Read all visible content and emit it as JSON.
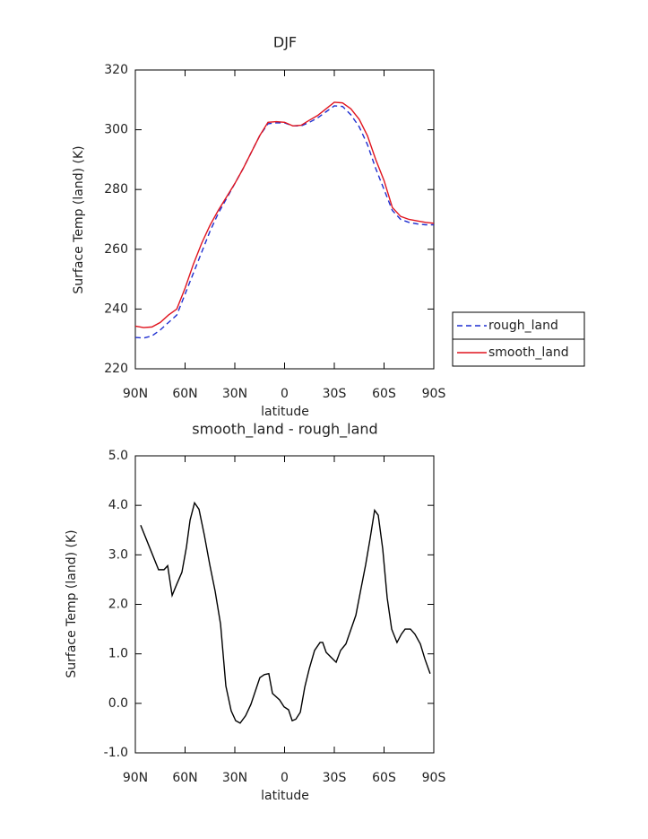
{
  "chart_data": [
    {
      "type": "line",
      "title": "DJF",
      "x_label": "latitude",
      "y_label": "Surface Temp (land) (K)",
      "x": [
        90,
        85,
        80,
        75,
        70,
        65,
        60,
        55,
        50,
        45,
        40,
        35,
        30,
        25,
        20,
        15,
        10,
        5,
        0,
        -5,
        -10,
        -15,
        -20,
        -25,
        -30,
        -35,
        -40,
        -45,
        -50,
        -55,
        -60,
        -65,
        -70,
        -75,
        -80,
        -85,
        -90
      ],
      "series": [
        {
          "name": "rough_land",
          "color": "#1f2fd0",
          "line_style": "dashed",
          "values": [
            230.5,
            230.3,
            231,
            233,
            235.5,
            238,
            245,
            252,
            259,
            266,
            272,
            277,
            282,
            287,
            292.5,
            298,
            302,
            302.3,
            302.3,
            301.3,
            301.3,
            302.5,
            304,
            306,
            308,
            307.8,
            305,
            301,
            295,
            287,
            280,
            273,
            270,
            269,
            268.5,
            268.2,
            268.2
          ]
        },
        {
          "name": "smooth_land",
          "color": "#e0141e",
          "line_style": "solid",
          "values": [
            234.3,
            233.8,
            234,
            235.5,
            238,
            240,
            247,
            255,
            262,
            268,
            273,
            277.5,
            282,
            287,
            292.5,
            298,
            302.5,
            302.7,
            302.5,
            301.3,
            301.5,
            303.2,
            304.8,
            307,
            309.2,
            309,
            307,
            303.5,
            298,
            290,
            283,
            274,
            271,
            270,
            269.5,
            269,
            268.7
          ]
        }
      ],
      "xlim": [
        90,
        -90
      ],
      "xticks": [
        {
          "value": 90,
          "label": "90N"
        },
        {
          "value": 60,
          "label": "60N"
        },
        {
          "value": 30,
          "label": "30N"
        },
        0,
        {
          "value": -30,
          "label": "30S"
        },
        {
          "value": -60,
          "label": "60S"
        },
        {
          "value": -90,
          "label": "90S"
        }
      ],
      "ylim": [
        220,
        320
      ],
      "yticks": [
        220,
        240,
        260,
        280,
        300,
        320
      ],
      "legend": "right"
    },
    {
      "type": "line",
      "title": "smooth_land - rough_land",
      "x_label": "latitude",
      "y_label": "Surface Temp (land) (K)",
      "x": [
        86.8,
        81.4,
        76,
        72.7,
        70.5,
        67.8,
        65.1,
        61.9,
        59.2,
        57,
        54.3,
        51.6,
        48.4,
        45.1,
        41.9,
        38.6,
        35.4,
        32.2,
        29.5,
        26.8,
        23.5,
        20.3,
        14.9,
        12.2,
        9.5,
        7.3,
        3,
        0.3,
        -2.4,
        -4.6,
        -6.8,
        -9.5,
        -12.2,
        -14.9,
        -18.1,
        -21.4,
        -23,
        -25.1,
        -28.4,
        -31.1,
        -33.8,
        -37,
        -40.3,
        -43,
        -45.7,
        -48.9,
        -51.6,
        -54.3,
        -56.5,
        -59.2,
        -61.9,
        -64.6,
        -67.8,
        -70.5,
        -72.7,
        -75.9,
        -78.6,
        -81.9,
        -84.6,
        -87.8
      ],
      "values": [
        3.6,
        3.15,
        2.7,
        2.7,
        2.78,
        2.18,
        2.4,
        2.65,
        3.15,
        3.7,
        4.05,
        3.92,
        3.4,
        2.8,
        2.27,
        1.6,
        0.35,
        -0.15,
        -0.35,
        -0.4,
        -0.25,
        -0.02,
        0.52,
        0.58,
        0.6,
        0.2,
        0.07,
        -0.07,
        -0.13,
        -0.35,
        -0.32,
        -0.18,
        0.33,
        0.7,
        1.07,
        1.23,
        1.23,
        1.03,
        0.92,
        0.83,
        1.07,
        1.2,
        1.52,
        1.78,
        2.25,
        2.8,
        3.33,
        3.9,
        3.8,
        3.12,
        2.13,
        1.5,
        1.23,
        1.4,
        1.5,
        1.5,
        1.4,
        1.2,
        0.9,
        0.6
      ],
      "color": "#000000",
      "xlim": [
        90,
        -90
      ],
      "xticks": [
        {
          "value": 90,
          "label": "90N"
        },
        {
          "value": 60,
          "label": "60N"
        },
        {
          "value": 30,
          "label": "30N"
        },
        0,
        {
          "value": -30,
          "label": "30S"
        },
        {
          "value": -60,
          "label": "60S"
        },
        {
          "value": -90,
          "label": "90S"
        }
      ],
      "ylim": [
        -1,
        5
      ],
      "yticks": [
        {
          "value": -1,
          "label": "-1.0"
        },
        {
          "value": 0,
          "label": "0.0"
        },
        {
          "value": 1,
          "label": "1.0"
        },
        {
          "value": 2,
          "label": "2.0"
        },
        {
          "value": 3,
          "label": "3.0"
        },
        {
          "value": 4,
          "label": "4.0"
        },
        {
          "value": 5,
          "label": "5.0"
        }
      ]
    }
  ]
}
